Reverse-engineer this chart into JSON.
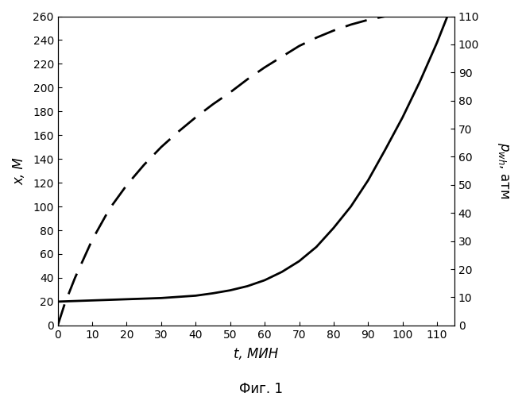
{
  "caption": "Фиг. 1",
  "xlabel": "t, МИН",
  "ylabel_left": "x, М",
  "xlim": [
    0,
    115
  ],
  "ylim_left": [
    0,
    260
  ],
  "ylim_right": [
    0,
    110
  ],
  "xticks": [
    0,
    10,
    20,
    30,
    40,
    50,
    60,
    70,
    80,
    90,
    100,
    110
  ],
  "yticks_left": [
    0,
    20,
    40,
    60,
    80,
    100,
    120,
    140,
    160,
    180,
    200,
    220,
    240,
    260
  ],
  "yticks_right": [
    0,
    10,
    20,
    30,
    40,
    50,
    60,
    70,
    80,
    90,
    100,
    110
  ],
  "dashed_t": [
    0,
    2,
    5,
    10,
    15,
    20,
    25,
    30,
    35,
    40,
    45,
    50,
    55,
    60,
    65,
    70,
    75,
    80,
    85,
    90,
    95,
    100,
    105,
    110,
    113
  ],
  "dashed_x": [
    0,
    18,
    40,
    72,
    98,
    118,
    135,
    150,
    163,
    175,
    186,
    196,
    207,
    217,
    226,
    235,
    242,
    248,
    253,
    257,
    260,
    262,
    263,
    264,
    265
  ],
  "solid_t": [
    0,
    5,
    10,
    15,
    20,
    25,
    30,
    35,
    40,
    45,
    50,
    55,
    60,
    65,
    70,
    75,
    80,
    85,
    90,
    95,
    100,
    105,
    110,
    113
  ],
  "solid_x": [
    20,
    20.5,
    21,
    21.5,
    22,
    22.5,
    23,
    24,
    25,
    27,
    29.5,
    33,
    38,
    45,
    54,
    66,
    82,
    100,
    122,
    148,
    175,
    205,
    238,
    260
  ],
  "line_color": "#000000",
  "bg_color": "#ffffff",
  "fontsize_label": 12,
  "fontsize_tick": 10,
  "fontsize_caption": 12
}
